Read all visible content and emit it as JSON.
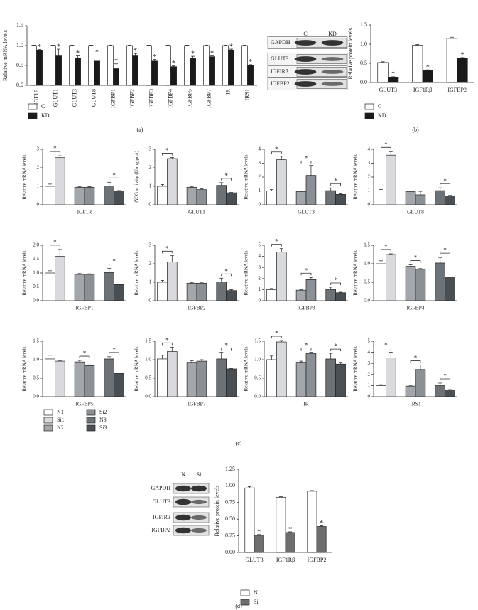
{
  "chart_data": [
    {
      "type": "grouped-bar",
      "panel_label": "(a)",
      "ylabel": "Relative mRNA levels",
      "categories": [
        "IGF1R",
        "GLUT1",
        "GLUT3",
        "GLUT8",
        "IGFBP1",
        "IGFBP2",
        "IGFBP3",
        "IGFBP4",
        "IGFBP5",
        "IGFBP7",
        "IR",
        "IRS1"
      ],
      "series": [
        {
          "name": "C",
          "color": "#ffffff",
          "values": [
            1,
            1,
            1,
            1,
            1,
            1,
            1,
            1,
            1,
            1,
            1,
            1
          ],
          "errors": [
            0.01,
            0.01,
            0.01,
            0.01,
            0.01,
            0.01,
            0.01,
            0.01,
            0.01,
            0.01,
            0.01,
            0.01
          ]
        },
        {
          "name": "KD",
          "color": "#1a1a1a",
          "values": [
            0.87,
            0.74,
            0.69,
            0.61,
            0.42,
            0.74,
            0.61,
            0.47,
            0.68,
            0.72,
            0.88,
            0.5
          ],
          "errors": [
            0.03,
            0.17,
            0.05,
            0.15,
            0.12,
            0.06,
            0.04,
            0.02,
            0.05,
            0.02,
            0.03,
            0.02
          ],
          "significance": [
            "*",
            "*",
            "*",
            "*",
            "*",
            "*",
            "*",
            "*",
            "*",
            "*",
            "*",
            "*"
          ]
        }
      ],
      "ylim": [
        0,
        1.5
      ],
      "yticks": [
        {
          "value": 0,
          "label": "0.0"
        },
        0.5,
        {
          "value": 1,
          "label": "1.0"
        },
        1.5
      ]
    },
    {
      "type": "grouped-bar",
      "panel_label": "(b)",
      "ylabel": "Relative protein levels",
      "categories": [
        "GLUT3",
        "IGF1Rβ",
        "IGFBP2"
      ],
      "series": [
        {
          "name": "C",
          "color": "#ffffff",
          "values": [
            0.52,
            0.97,
            1.15
          ],
          "errors": [
            0.02,
            0.02,
            0.03
          ]
        },
        {
          "name": "KD",
          "color": "#1a1a1a",
          "values": [
            0.14,
            0.31,
            0.63
          ],
          "errors": [
            0.01,
            0.02,
            0.02
          ],
          "significance": [
            "*",
            "*",
            "*"
          ]
        }
      ],
      "ylim": [
        0,
        1.5
      ],
      "yticks": [
        {
          "value": 0,
          "label": "0.0"
        },
        0.5,
        {
          "value": 1,
          "label": "1.0"
        },
        1.5
      ]
    },
    {
      "type": "bar",
      "xlabel": "IGF1R",
      "ylabel": "Relative mRNA levels",
      "values": [
        1.0,
        2.55,
        0.95,
        0.95,
        1.02,
        0.75
      ],
      "errors": [
        0.12,
        0.1,
        0.04,
        0.03,
        0.2,
        0.02
      ],
      "ylim": [
        0,
        3
      ],
      "yticks": [
        0,
        1,
        2,
        3
      ],
      "brackets": [
        {
          "from": 0,
          "to": 1,
          "label": "*"
        },
        {
          "from": 4,
          "to": 5,
          "label": "*"
        }
      ]
    },
    {
      "type": "bar",
      "xlabel": "GLUT1",
      "ylabel": "iNOS activity (U/mg prot)",
      "values": [
        1.0,
        2.5,
        0.95,
        0.82,
        1.05,
        0.65
      ],
      "errors": [
        0.1,
        0.06,
        0.04,
        0.05,
        0.15,
        0.02
      ],
      "ylim": [
        0,
        3
      ],
      "yticks": [
        0,
        1,
        2,
        3
      ],
      "brackets": [
        {
          "from": 0,
          "to": 1,
          "label": "*"
        },
        {
          "from": 4,
          "to": 5,
          "label": "*"
        }
      ]
    },
    {
      "type": "bar",
      "xlabel": "GLUT3",
      "ylabel": "Relative mRNA levels",
      "values": [
        1.0,
        3.25,
        0.95,
        2.12,
        1.02,
        0.75
      ],
      "errors": [
        0.1,
        0.25,
        0.03,
        0.72,
        0.2,
        0.05
      ],
      "ylim": [
        0,
        4
      ],
      "yticks": [
        0,
        1,
        2,
        3,
        4
      ],
      "brackets": [
        {
          "from": 0,
          "to": 1,
          "label": "*"
        },
        {
          "from": 2,
          "to": 3,
          "label": "*"
        },
        {
          "from": 4,
          "to": 5,
          "label": "*"
        }
      ]
    },
    {
      "type": "bar",
      "xlabel": "GLUT8",
      "ylabel": "Relative mRNA levels",
      "values": [
        1.0,
        3.58,
        0.95,
        0.72,
        1.02,
        0.65
      ],
      "errors": [
        0.1,
        0.25,
        0.04,
        0.25,
        0.2,
        0.03
      ],
      "ylim": [
        0,
        4
      ],
      "yticks": [
        0,
        1,
        2,
        3,
        4
      ],
      "brackets": [
        {
          "from": 0,
          "to": 1,
          "label": "*"
        },
        {
          "from": 4,
          "to": 5,
          "label": "*"
        }
      ]
    },
    {
      "type": "bar",
      "xlabel": "IGFBP1",
      "ylabel": "Relative mRNA levels",
      "values": [
        1.0,
        1.6,
        0.95,
        0.95,
        1.02,
        0.58
      ],
      "errors": [
        0.08,
        0.25,
        0.03,
        0.02,
        0.15,
        0.02
      ],
      "ylim": [
        0,
        2
      ],
      "yticks": [
        {
          "value": 0,
          "label": "0.0"
        },
        0.5,
        {
          "value": 1,
          "label": "1.0"
        },
        1.5,
        {
          "value": 2,
          "label": "2.0"
        }
      ],
      "brackets": [
        {
          "from": 0,
          "to": 1,
          "label": "*"
        },
        {
          "from": 4,
          "to": 5,
          "label": "*"
        }
      ]
    },
    {
      "type": "bar",
      "xlabel": "IGFBP2",
      "ylabel": "Relative mRNA levels",
      "values": [
        1.0,
        2.1,
        0.95,
        0.95,
        1.02,
        0.55
      ],
      "errors": [
        0.1,
        0.35,
        0.04,
        0.02,
        0.2,
        0.05
      ],
      "ylim": [
        0,
        3
      ],
      "yticks": [
        0,
        1,
        2,
        3
      ],
      "brackets": [
        {
          "from": 0,
          "to": 1,
          "label": "*"
        },
        {
          "from": 4,
          "to": 5,
          "label": "*"
        }
      ]
    },
    {
      "type": "bar",
      "xlabel": "IGFBP3",
      "ylabel": "Relative mRNA levels",
      "values": [
        1.0,
        4.4,
        0.95,
        1.9,
        1.02,
        0.72
      ],
      "errors": [
        0.1,
        0.3,
        0.04,
        0.2,
        0.2,
        0.05
      ],
      "ylim": [
        0,
        5
      ],
      "yticks": [
        0,
        1,
        2,
        3,
        4,
        5
      ],
      "brackets": [
        {
          "from": 0,
          "to": 1,
          "label": "*"
        },
        {
          "from": 2,
          "to": 3,
          "label": "*"
        },
        {
          "from": 4,
          "to": 5,
          "label": "*"
        }
      ]
    },
    {
      "type": "bar",
      "xlabel": "IGFBP4",
      "ylabel": "Relative mRNA levels",
      "values": [
        1.0,
        1.25,
        0.93,
        0.85,
        1.02,
        0.64
      ],
      "errors": [
        0.08,
        0.02,
        0.04,
        0.02,
        0.15,
        0.0
      ],
      "ylim": [
        0,
        1.5
      ],
      "yticks": [
        {
          "value": 0,
          "label": "0.0"
        },
        0.5,
        {
          "value": 1,
          "label": "1.0"
        },
        1.5
      ],
      "brackets": [
        {
          "from": 0,
          "to": 1,
          "label": "*"
        },
        {
          "from": 2,
          "to": 3,
          "label": "*"
        },
        {
          "from": 4,
          "to": 5,
          "label": "*"
        }
      ]
    },
    {
      "type": "bar",
      "xlabel": "IGFBP5",
      "ylabel": "Relative mRNA levels",
      "values": [
        1.02,
        0.96,
        0.94,
        0.84,
        1.02,
        0.63
      ],
      "errors": [
        0.1,
        0.02,
        0.04,
        0.02,
        0.06,
        0.0
      ],
      "ylim": [
        0,
        1.5
      ],
      "yticks": [
        {
          "value": 0,
          "label": "0.0"
        },
        0.5,
        {
          "value": 1,
          "label": "1.0"
        },
        1.5
      ],
      "brackets": [
        {
          "from": 2,
          "to": 3,
          "label": "*"
        },
        {
          "from": 4,
          "to": 5,
          "label": "*"
        }
      ]
    },
    {
      "type": "bar",
      "xlabel": "IGFBP7",
      "ylabel": "Relative mRNA levels",
      "values": [
        1.02,
        1.22,
        0.93,
        0.96,
        1.02,
        0.75
      ],
      "errors": [
        0.1,
        0.12,
        0.04,
        0.04,
        0.18,
        0.01
      ],
      "ylim": [
        0,
        1.5
      ],
      "yticks": [
        {
          "value": 0,
          "label": "0.0"
        },
        0.5,
        {
          "value": 1,
          "label": "1.0"
        },
        1.5
      ],
      "brackets": [
        {
          "from": 0,
          "to": 1,
          "label": "*"
        },
        {
          "from": 4,
          "to": 5,
          "label": "*"
        }
      ]
    },
    {
      "type": "bar",
      "xlabel": "IR",
      "ylabel": "Relative mRNA levels",
      "values": [
        1.0,
        1.48,
        0.93,
        1.17,
        1.02,
        0.88
      ],
      "errors": [
        0.1,
        0.04,
        0.03,
        0.03,
        0.15,
        0.05
      ],
      "ylim": [
        0,
        1.5
      ],
      "yticks": [
        {
          "value": 0,
          "label": "0.0"
        },
        0.5,
        {
          "value": 1,
          "label": "1.0"
        },
        1.5
      ],
      "brackets": [
        {
          "from": 0,
          "to": 1,
          "label": "*"
        },
        {
          "from": 2,
          "to": 3,
          "label": "*"
        },
        {
          "from": 4,
          "to": 5,
          "label": "*"
        }
      ]
    },
    {
      "type": "bar",
      "xlabel": "IRS1",
      "ylabel": "Relative mRNA levels",
      "values": [
        1.0,
        3.5,
        0.95,
        2.45,
        1.02,
        0.62
      ],
      "errors": [
        0.08,
        0.5,
        0.03,
        0.4,
        0.2,
        0.02
      ],
      "ylim": [
        0,
        5
      ],
      "yticks": [
        0,
        1,
        2,
        3,
        4,
        5
      ],
      "brackets": [
        {
          "from": 0,
          "to": 1,
          "label": "*"
        },
        {
          "from": 2,
          "to": 3,
          "label": "*"
        },
        {
          "from": 4,
          "to": 5,
          "label": "*"
        }
      ]
    },
    {
      "type": "legend",
      "panel_label": "(c)",
      "names": [
        "N1",
        "Si1",
        "N2",
        "Si2",
        "N3",
        "Si3"
      ],
      "colors": [
        "#ffffff",
        "#d9dadd",
        "#a3a7ab",
        "#8b9095",
        "#6d7277",
        "#4a4f53"
      ]
    },
    {
      "type": "grouped-bar",
      "panel_label": "(d)",
      "ylabel": "Relative protein levels",
      "categories": [
        "GLUT3",
        "IGF1Rβ",
        "IGFBP2"
      ],
      "series": [
        {
          "name": "N",
          "color": "#ffffff",
          "values": [
            0.97,
            0.83,
            0.92
          ],
          "errors": [
            0.02,
            0.01,
            0.01
          ]
        },
        {
          "name": "Si",
          "color": "#6e6e6e",
          "values": [
            0.25,
            0.3,
            0.39
          ],
          "errors": [
            0.02,
            0.01,
            0.01
          ],
          "significance": [
            "*",
            "*",
            "*"
          ]
        }
      ],
      "ylim": [
        0,
        1.25
      ],
      "yticks": [
        {
          "value": 0,
          "label": "0.00"
        },
        0.25,
        {
          "value": 0.5,
          "label": "0.50"
        },
        0.75,
        {
          "value": 1,
          "label": "1.00"
        },
        1.25
      ]
    }
  ],
  "blots": [
    {
      "lanes": [
        "C",
        "KD"
      ],
      "rows": [
        "GAPDH",
        "GLUT3",
        "IGFIRβ",
        "IGFBP2"
      ]
    },
    {
      "lanes": [
        "N",
        "Si"
      ],
      "rows": [
        "GAPDH",
        "GLUT3",
        "IGFIRβ",
        "IGFBP2"
      ]
    }
  ]
}
